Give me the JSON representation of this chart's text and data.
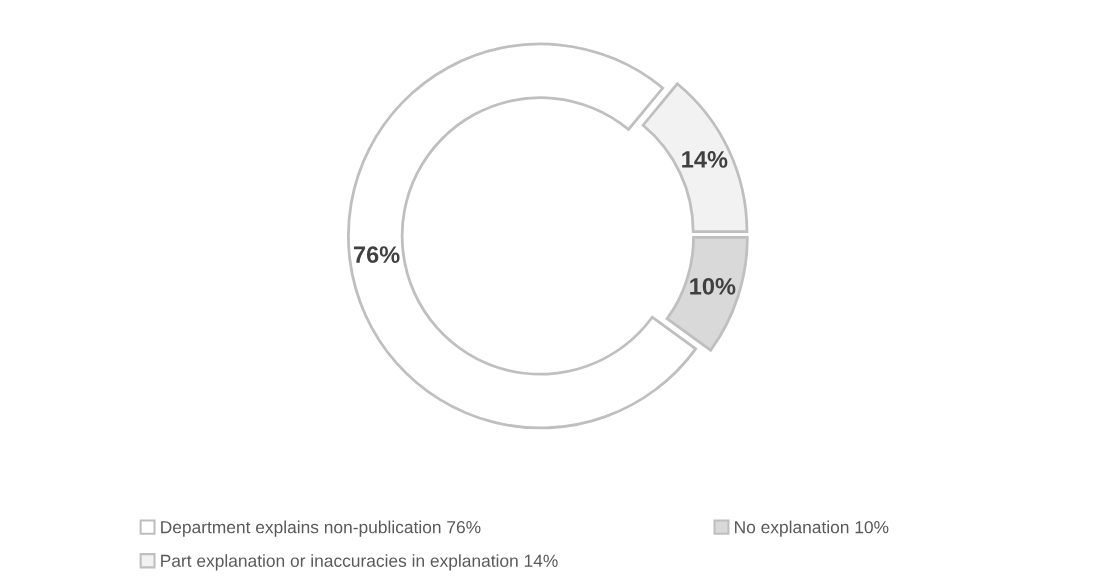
{
  "chart_data": {
    "type": "donut",
    "categories": [
      "Department explains non-publication 76%",
      "Part explanation or inaccuracies in explanation 14%",
      "No explanation 10%"
    ],
    "values": [
      76,
      14,
      10
    ],
    "colors": [
      "#ffffff",
      "#f2f2f2",
      "#d9d9d9"
    ],
    "value_labels": [
      "76%",
      "14%",
      "10%"
    ],
    "legend": "bottom"
  }
}
